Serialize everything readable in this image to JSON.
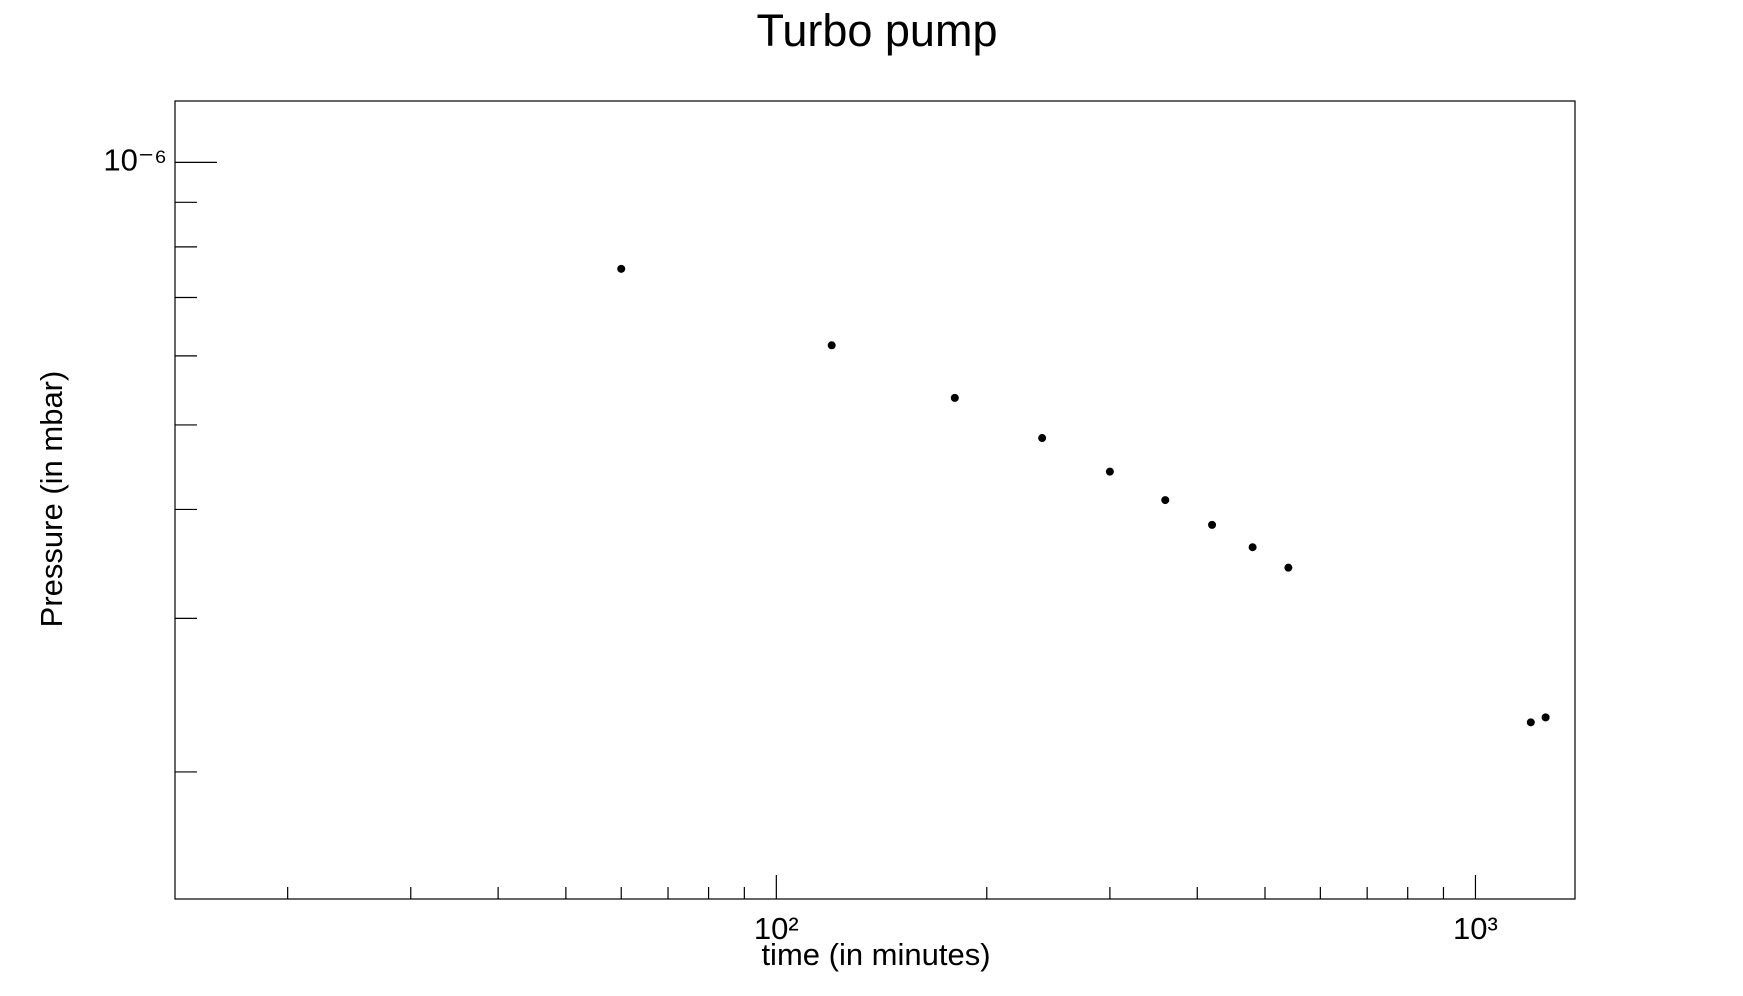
{
  "chart_data": {
    "type": "scatter",
    "title": "Turbo pump",
    "x_label": "time (in minutes)",
    "y_label": "Pressure (in mbar)",
    "x_scale": "log",
    "y_scale": "log",
    "color": "#000000",
    "xlim": [
      13.8,
      1388
    ],
    "ylim": [
      1.43e-07,
      1.176e-06
    ],
    "xticks": [
      {
        "value": 100,
        "label": "10²"
      },
      {
        "value": 1000,
        "label": "10³"
      }
    ],
    "x_minor_ticks": [
      20,
      30,
      40,
      50,
      60,
      70,
      80,
      90,
      200,
      300,
      400,
      500,
      600,
      700,
      800,
      900
    ],
    "yticks": [
      {
        "value": 1e-06,
        "label": "10⁻⁶"
      }
    ],
    "y_minor_ticks": [
      2e-07,
      3e-07,
      4e-07,
      5e-07,
      6e-07,
      7e-07,
      8e-07,
      9e-07
    ],
    "x": [
      60,
      120,
      180,
      240,
      300,
      360,
      420,
      480,
      540,
      1200,
      1260
    ],
    "values": [
      7.55e-07,
      6.17e-07,
      5.37e-07,
      4.83e-07,
      4.42e-07,
      4.1e-07,
      3.84e-07,
      3.62e-07,
      3.43e-07,
      2.28e-07,
      2.31e-07
    ]
  }
}
